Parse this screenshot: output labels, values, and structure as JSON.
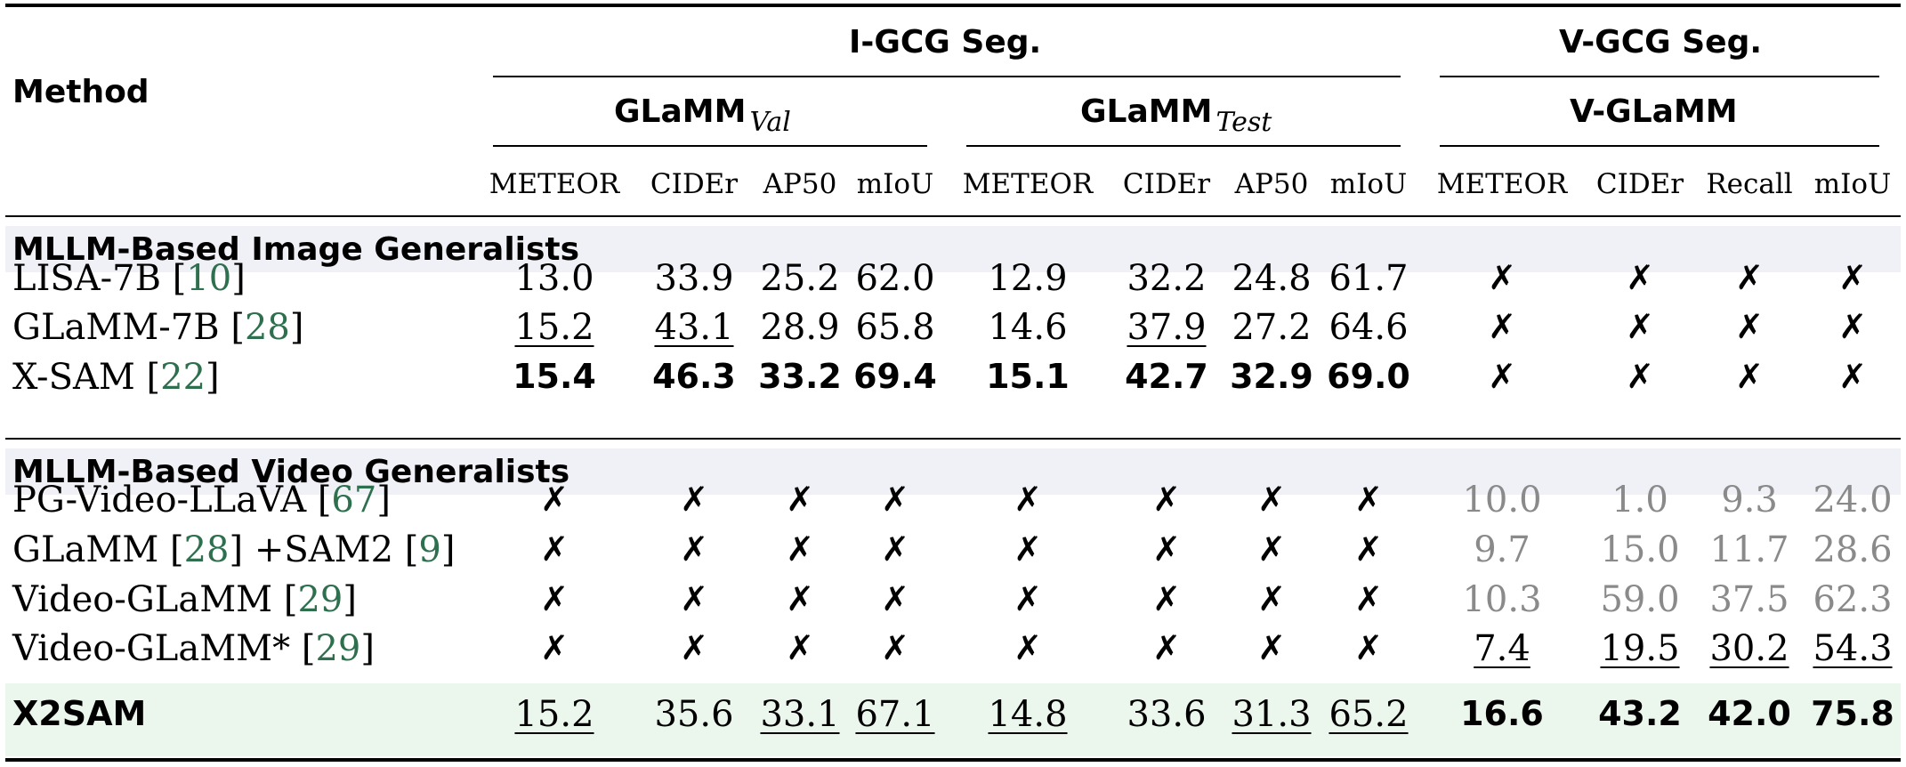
{
  "header": {
    "method": "Method",
    "igcg": "I-GCG Seg.",
    "vgcg": "V-GCG Seg.",
    "glamm": "GLaMM",
    "val_sub": "Val",
    "test_sub": "Test",
    "vglamm": "V-GLaMM",
    "metrics": [
      "METEOR",
      "CIDEr",
      "AP50",
      "mIoU",
      "METEOR",
      "CIDEr",
      "AP50",
      "mIoU",
      "METEOR",
      "CIDEr",
      "Recall",
      "mIoU"
    ]
  },
  "groups": [
    {
      "label": "MLLM-Based Image Generalists",
      "rows": [
        {
          "name": "LISA-7B ",
          "cites": [
            "10"
          ],
          "values": [
            {
              "v": "13.0"
            },
            {
              "v": "33.9"
            },
            {
              "v": "25.2"
            },
            {
              "v": "62.0"
            },
            {
              "v": "12.9"
            },
            {
              "v": "32.2"
            },
            {
              "v": "24.8"
            },
            {
              "v": "61.7"
            },
            {
              "v": "✗",
              "x": true
            },
            {
              "v": "✗",
              "x": true
            },
            {
              "v": "✗",
              "x": true
            },
            {
              "v": "✗",
              "x": true
            }
          ]
        },
        {
          "name": "GLaMM-7B ",
          "cites": [
            "28"
          ],
          "values": [
            {
              "v": "15.2",
              "u": true
            },
            {
              "v": "43.1",
              "u": true
            },
            {
              "v": "28.9"
            },
            {
              "v": "65.8"
            },
            {
              "v": "14.6"
            },
            {
              "v": "37.9",
              "u": true
            },
            {
              "v": "27.2"
            },
            {
              "v": "64.6"
            },
            {
              "v": "✗",
              "x": true
            },
            {
              "v": "✗",
              "x": true
            },
            {
              "v": "✗",
              "x": true
            },
            {
              "v": "✗",
              "x": true
            }
          ]
        },
        {
          "name": "X-SAM ",
          "cites": [
            "22"
          ],
          "values": [
            {
              "v": "15.4",
              "b": true
            },
            {
              "v": "46.3",
              "b": true
            },
            {
              "v": "33.2",
              "b": true
            },
            {
              "v": "69.4",
              "b": true
            },
            {
              "v": "15.1",
              "b": true
            },
            {
              "v": "42.7",
              "b": true
            },
            {
              "v": "32.9",
              "b": true
            },
            {
              "v": "69.0",
              "b": true
            },
            {
              "v": "✗",
              "x": true
            },
            {
              "v": "✗",
              "x": true
            },
            {
              "v": "✗",
              "x": true
            },
            {
              "v": "✗",
              "x": true
            }
          ]
        }
      ]
    },
    {
      "label": "MLLM-Based Video Generalists",
      "rows": [
        {
          "name": "PG-Video-LLaVA ",
          "cites": [
            "67"
          ],
          "values": [
            {
              "v": "✗",
              "x": true
            },
            {
              "v": "✗",
              "x": true
            },
            {
              "v": "✗",
              "x": true
            },
            {
              "v": "✗",
              "x": true
            },
            {
              "v": "✗",
              "x": true
            },
            {
              "v": "✗",
              "x": true
            },
            {
              "v": "✗",
              "x": true
            },
            {
              "v": "✗",
              "x": true
            },
            {
              "v": "10.0",
              "g": true
            },
            {
              "v": "1.0",
              "g": true
            },
            {
              "v": "9.3",
              "g": true
            },
            {
              "v": "24.0",
              "g": true
            }
          ]
        },
        {
          "name": "GLaMM ",
          "cites": [
            "28",
            "9"
          ],
          "mid": " +SAM2 ",
          "values": [
            {
              "v": "✗",
              "x": true
            },
            {
              "v": "✗",
              "x": true
            },
            {
              "v": "✗",
              "x": true
            },
            {
              "v": "✗",
              "x": true
            },
            {
              "v": "✗",
              "x": true
            },
            {
              "v": "✗",
              "x": true
            },
            {
              "v": "✗",
              "x": true
            },
            {
              "v": "✗",
              "x": true
            },
            {
              "v": "9.7",
              "g": true
            },
            {
              "v": "15.0",
              "g": true
            },
            {
              "v": "11.7",
              "g": true
            },
            {
              "v": "28.6",
              "g": true
            }
          ]
        },
        {
          "name": "Video-GLaMM ",
          "cites": [
            "29"
          ],
          "values": [
            {
              "v": "✗",
              "x": true
            },
            {
              "v": "✗",
              "x": true
            },
            {
              "v": "✗",
              "x": true
            },
            {
              "v": "✗",
              "x": true
            },
            {
              "v": "✗",
              "x": true
            },
            {
              "v": "✗",
              "x": true
            },
            {
              "v": "✗",
              "x": true
            },
            {
              "v": "✗",
              "x": true
            },
            {
              "v": "10.3",
              "g": true
            },
            {
              "v": "59.0",
              "g": true
            },
            {
              "v": "37.5",
              "g": true
            },
            {
              "v": "62.3",
              "g": true
            }
          ]
        },
        {
          "name": "Video-GLaMM* ",
          "cites": [
            "29"
          ],
          "values": [
            {
              "v": "✗",
              "x": true
            },
            {
              "v": "✗",
              "x": true
            },
            {
              "v": "✗",
              "x": true
            },
            {
              "v": "✗",
              "x": true
            },
            {
              "v": "✗",
              "x": true
            },
            {
              "v": "✗",
              "x": true
            },
            {
              "v": "✗",
              "x": true
            },
            {
              "v": "✗",
              "x": true
            },
            {
              "v": "7.4",
              "u": true
            },
            {
              "v": "19.5",
              "u": true
            },
            {
              "v": "30.2",
              "u": true
            },
            {
              "v": "54.3",
              "u": true
            }
          ]
        }
      ]
    }
  ],
  "ours": {
    "name": "X2SAM",
    "values": [
      {
        "v": "15.2",
        "u": true
      },
      {
        "v": "35.6"
      },
      {
        "v": "33.1",
        "u": true
      },
      {
        "v": "67.1",
        "u": true
      },
      {
        "v": "14.8",
        "u": true
      },
      {
        "v": "33.6"
      },
      {
        "v": "31.3",
        "u": true
      },
      {
        "v": "65.2",
        "u": true
      },
      {
        "v": "16.6",
        "b": true
      },
      {
        "v": "43.2",
        "b": true
      },
      {
        "v": "42.0",
        "b": true
      },
      {
        "v": "75.8",
        "b": true
      }
    ]
  },
  "colors": {
    "citation": "#2e6f4e",
    "group_band": "#f0f1f6",
    "ours_band": "#ebf6ed",
    "gray_text": "#8a8a8a"
  }
}
